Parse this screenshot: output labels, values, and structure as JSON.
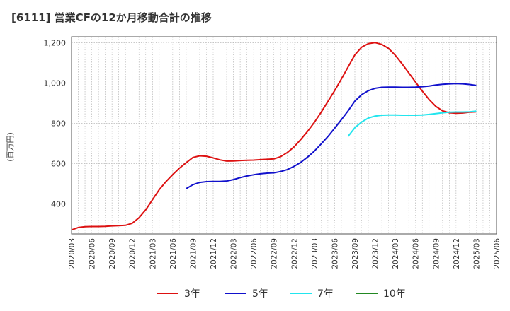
{
  "chart_data": {
    "type": "line",
    "title": "[6111]  営業CFの12か月移動合計の推移",
    "ylabel": "(百万円)",
    "xlabel": "",
    "yticks": [
      400,
      600,
      800,
      1000,
      1200
    ],
    "ytick_labels": [
      "400",
      "600",
      "800",
      "1,000",
      "1,200"
    ],
    "ylim": [
      250,
      1230
    ],
    "xlim": [
      "2020-03",
      "2025-06"
    ],
    "xtick_labels": [
      "2020/03",
      "2020/06",
      "2020/09",
      "2020/12",
      "2021/03",
      "2021/06",
      "2021/09",
      "2021/12",
      "2022/03",
      "2022/06",
      "2022/09",
      "2022/12",
      "2023/03",
      "2023/06",
      "2023/09",
      "2023/12",
      "2024/03",
      "2024/06",
      "2024/09",
      "2024/12",
      "2025/03",
      "2025/06"
    ],
    "grid": true,
    "legend_position": "bottom",
    "series": [
      {
        "name": "3年",
        "color": "#dd1111",
        "x": [
          "2020-03",
          "2020-04",
          "2020-05",
          "2020-06",
          "2020-07",
          "2020-08",
          "2020-09",
          "2020-10",
          "2020-11",
          "2020-12",
          "2021-01",
          "2021-02",
          "2021-03",
          "2021-04",
          "2021-05",
          "2021-06",
          "2021-07",
          "2021-08",
          "2021-09",
          "2021-10",
          "2021-11",
          "2021-12",
          "2022-01",
          "2022-02",
          "2022-03",
          "2022-04",
          "2022-05",
          "2022-06",
          "2022-07",
          "2022-08",
          "2022-09",
          "2022-10",
          "2022-11",
          "2022-12",
          "2023-01",
          "2023-02",
          "2023-03",
          "2023-04",
          "2023-05",
          "2023-06",
          "2023-07",
          "2023-08",
          "2023-09",
          "2023-10",
          "2023-11",
          "2023-12",
          "2024-01",
          "2024-02",
          "2024-03",
          "2024-04",
          "2024-05",
          "2024-06",
          "2024-07",
          "2024-08",
          "2024-09",
          "2024-10",
          "2024-11",
          "2024-12",
          "2025-01",
          "2025-02",
          "2025-03"
        ],
        "values": [
          270,
          282,
          286,
          287,
          287,
          288,
          290,
          291,
          293,
          303,
          330,
          370,
          420,
          470,
          510,
          545,
          577,
          604,
          630,
          638,
          636,
          628,
          618,
          612,
          613,
          615,
          616,
          617,
          619,
          621,
          623,
          634,
          655,
          683,
          720,
          760,
          805,
          855,
          908,
          962,
          1020,
          1080,
          1140,
          1178,
          1196,
          1201,
          1192,
          1172,
          1138,
          1095,
          1050,
          1005,
          960,
          918,
          884,
          862,
          852,
          850,
          851,
          855,
          857
        ]
      },
      {
        "name": "5年",
        "color": "#1111cc",
        "x": [
          "2021-08",
          "2021-09",
          "2021-10",
          "2021-11",
          "2021-12",
          "2022-01",
          "2022-02",
          "2022-03",
          "2022-04",
          "2022-05",
          "2022-06",
          "2022-07",
          "2022-08",
          "2022-09",
          "2022-10",
          "2022-11",
          "2022-12",
          "2023-01",
          "2023-02",
          "2023-03",
          "2023-04",
          "2023-05",
          "2023-06",
          "2023-07",
          "2023-08",
          "2023-09",
          "2023-10",
          "2023-11",
          "2023-12",
          "2024-01",
          "2024-02",
          "2024-03",
          "2024-04",
          "2024-05",
          "2024-06",
          "2024-07",
          "2024-08",
          "2024-09",
          "2024-10",
          "2024-11",
          "2024-12",
          "2025-01",
          "2025-02",
          "2025-03"
        ],
        "values": [
          475,
          495,
          506,
          510,
          511,
          511,
          513,
          520,
          530,
          538,
          544,
          549,
          552,
          554,
          560,
          570,
          586,
          606,
          632,
          662,
          697,
          734,
          775,
          818,
          862,
          910,
          942,
          962,
          974,
          979,
          980,
          980,
          979,
          979,
          980,
          982,
          985,
          990,
          994,
          996,
          997,
          996,
          993,
          988
        ]
      },
      {
        "name": "7年",
        "color": "#22e5ee",
        "x": [
          "2023-08",
          "2023-09",
          "2023-10",
          "2023-11",
          "2023-12",
          "2024-01",
          "2024-02",
          "2024-03",
          "2024-04",
          "2024-05",
          "2024-06",
          "2024-07",
          "2024-08",
          "2024-09",
          "2024-10",
          "2024-11",
          "2024-12",
          "2025-01",
          "2025-02",
          "2025-03"
        ],
        "values": [
          735,
          778,
          806,
          826,
          836,
          840,
          841,
          841,
          840,
          840,
          840,
          841,
          844,
          848,
          852,
          855,
          856,
          856,
          857,
          860
        ]
      },
      {
        "name": "10年",
        "color": "#228822",
        "x": [],
        "values": []
      }
    ]
  }
}
